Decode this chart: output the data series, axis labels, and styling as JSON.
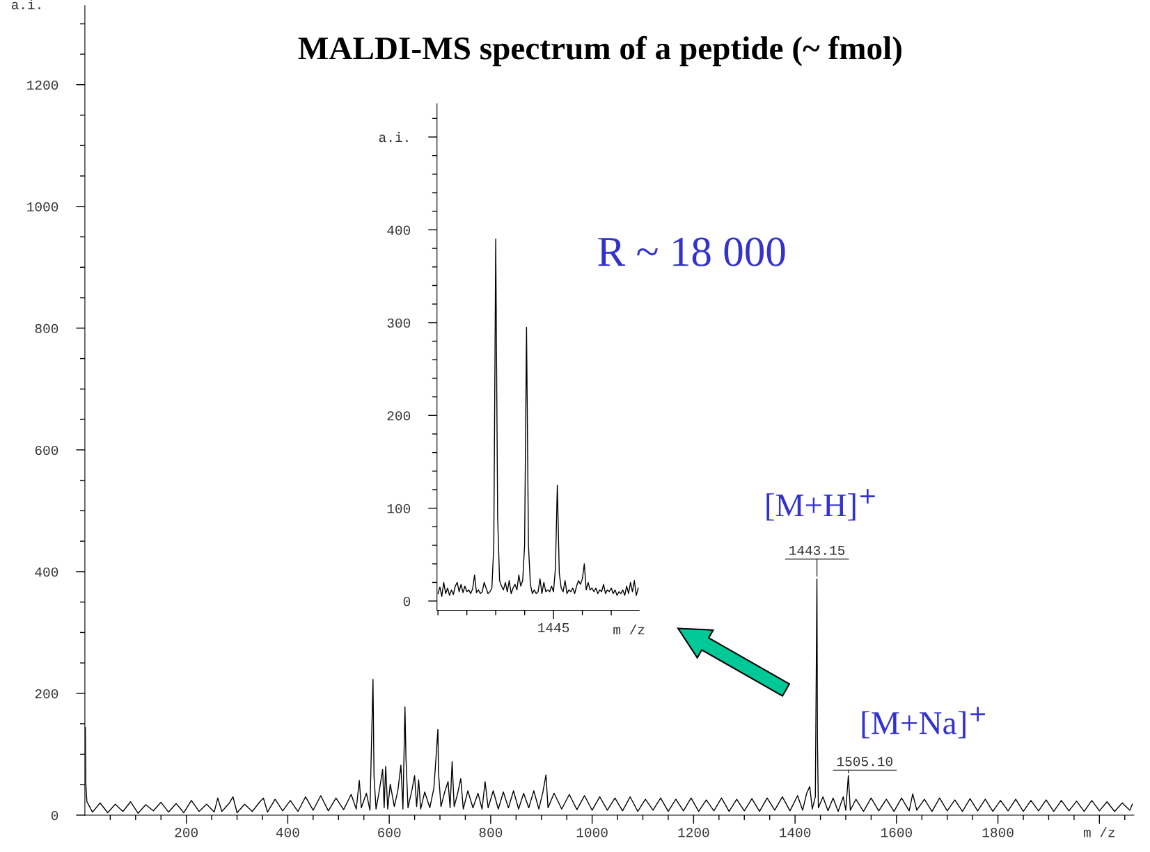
{
  "chart_data": [
    {
      "type": "line",
      "title": "MALDI-MS spectrum of a peptide (~ fmol)",
      "ylabel": "a.i.",
      "xlim": [
        0,
        2068
      ],
      "ylim": [
        0,
        1330
      ],
      "xticks": [
        {
          "value": 50,
          "label": null
        },
        {
          "value": 100,
          "label": null
        },
        {
          "value": 150,
          "label": null
        },
        200,
        {
          "value": 250,
          "label": null
        },
        {
          "value": 300,
          "label": null
        },
        {
          "value": 350,
          "label": null
        },
        400,
        {
          "value": 450,
          "label": null
        },
        {
          "value": 500,
          "label": null
        },
        {
          "value": 550,
          "label": null
        },
        600,
        {
          "value": 650,
          "label": null
        },
        {
          "value": 700,
          "label": null
        },
        {
          "value": 750,
          "label": null
        },
        800,
        {
          "value": 850,
          "label": null
        },
        {
          "value": 900,
          "label": null
        },
        {
          "value": 950,
          "label": null
        },
        1000,
        {
          "value": 1050,
          "label": null
        },
        {
          "value": 1100,
          "label": null
        },
        {
          "value": 1150,
          "label": null
        },
        1200,
        {
          "value": 1250,
          "label": null
        },
        {
          "value": 1300,
          "label": null
        },
        {
          "value": 1350,
          "label": null
        },
        1400,
        {
          "value": 1450,
          "label": null
        },
        {
          "value": 1500,
          "label": null
        },
        {
          "value": 1550,
          "label": null
        },
        1600,
        {
          "value": 1650,
          "label": null
        },
        {
          "value": 1700,
          "label": null
        },
        {
          "value": 1750,
          "label": null
        },
        1800,
        {
          "value": 1850,
          "label": null
        },
        {
          "value": 1900,
          "label": null
        },
        {
          "value": 1950,
          "label": null
        },
        {
          "value": 2000,
          "label": "m /z"
        },
        {
          "value": 2050,
          "label": null
        }
      ],
      "yticks": [
        0,
        {
          "value": 50,
          "label": null
        },
        {
          "value": 100,
          "label": null
        },
        {
          "value": 150,
          "label": null
        },
        200,
        {
          "value": 250,
          "label": null
        },
        {
          "value": 300,
          "label": null
        },
        {
          "value": 350,
          "label": null
        },
        400,
        {
          "value": 450,
          "label": null
        },
        {
          "value": 500,
          "label": null
        },
        {
          "value": 550,
          "label": null
        },
        600,
        {
          "value": 650,
          "label": null
        },
        {
          "value": 700,
          "label": null
        },
        {
          "value": 750,
          "label": null
        },
        800,
        {
          "value": 850,
          "label": null
        },
        {
          "value": 900,
          "label": null
        },
        {
          "value": 950,
          "label": null
        },
        1000,
        {
          "value": 1050,
          "label": null
        },
        {
          "value": 1100,
          "label": null
        },
        {
          "value": 1150,
          "label": null
        },
        1200,
        {
          "value": 1250,
          "label": null
        },
        {
          "value": 1300,
          "label": null
        }
      ],
      "annotations": [
        "[M+H]$^{+}$",
        {
          "text": "1443.15",
          "x": 1443.15,
          "y": 388
        },
        "[M+Na]$^{+}$",
        {
          "text": "1505.10",
          "x": 1505.1,
          "y": 65
        }
      ],
      "series": [
        {
          "color": "#000000",
          "x": [
            1,
            2,
            4,
            15,
            30,
            45,
            60,
            75,
            90,
            105,
            120,
            135,
            150,
            165,
            180,
            195,
            210,
            225,
            240,
            255,
            262,
            270,
            285,
            292,
            300,
            315,
            330,
            345,
            352,
            360,
            375,
            390,
            405,
            420,
            435,
            450,
            465,
            480,
            495,
            510,
            525,
            535,
            541,
            545,
            555,
            562,
            568,
            570,
            574,
            580,
            587,
            590,
            593,
            597,
            602,
            610,
            617,
            623,
            627,
            631,
            633,
            637,
            645,
            650,
            654,
            658,
            662,
            670,
            680,
            688,
            693,
            696,
            697,
            702,
            710,
            716,
            720,
            724,
            728,
            735,
            741,
            746,
            755,
            765,
            775,
            783,
            789,
            795,
            805,
            815,
            825,
            835,
            845,
            855,
            865,
            875,
            885,
            895,
            903,
            909,
            913,
            925,
            940,
            955,
            970,
            985,
            1000,
            1015,
            1030,
            1045,
            1060,
            1075,
            1090,
            1105,
            1120,
            1135,
            1150,
            1165,
            1180,
            1195,
            1210,
            1225,
            1240,
            1255,
            1270,
            1285,
            1300,
            1315,
            1330,
            1345,
            1360,
            1375,
            1390,
            1405,
            1415,
            1423,
            1429,
            1434,
            1440,
            1443.15,
            1444.2,
            1446,
            1455,
            1465,
            1475,
            1485,
            1495,
            1500,
            1505.1,
            1509,
            1520,
            1535,
            1550,
            1565,
            1580,
            1595,
            1610,
            1625,
            1632,
            1640,
            1655,
            1670,
            1685,
            1700,
            1715,
            1730,
            1745,
            1760,
            1775,
            1790,
            1805,
            1820,
            1835,
            1850,
            1865,
            1880,
            1895,
            1910,
            1925,
            1940,
            1955,
            1970,
            1985,
            2000,
            2015,
            2030,
            2045,
            2060,
            2065
          ],
          "values": [
            144,
            50,
            22,
            5,
            20,
            4,
            18,
            6,
            22,
            3,
            17,
            7,
            21,
            5,
            19,
            4,
            24,
            6,
            18,
            5,
            28,
            6,
            20,
            30,
            4,
            18,
            6,
            22,
            28,
            5,
            26,
            7,
            24,
            6,
            30,
            8,
            32,
            7,
            28,
            9,
            34,
            10,
            57,
            12,
            36,
            8,
            223,
            64,
            10,
            38,
            75,
            12,
            80,
            10,
            51,
            14,
            40,
            82,
            10,
            178,
            94,
            12,
            42,
            65,
            14,
            58,
            10,
            38,
            12,
            44,
            104,
            141,
            71,
            14,
            40,
            55,
            12,
            88,
            14,
            36,
            60,
            10,
            40,
            12,
            36,
            10,
            55,
            12,
            40,
            10,
            38,
            12,
            40,
            10,
            36,
            12,
            40,
            10,
            38,
            66,
            12,
            36,
            10,
            34,
            9,
            32,
            8,
            30,
            8,
            28,
            7,
            30,
            6,
            26,
            8,
            28,
            6,
            26,
            7,
            28,
            6,
            25,
            7,
            28,
            6,
            26,
            7,
            27,
            6,
            28,
            8,
            30,
            7,
            32,
            8,
            36,
            47,
            10,
            30,
            388,
            123,
            12,
            30,
            7,
            28,
            6,
            30,
            8,
            65,
            8,
            26,
            6,
            28,
            7,
            26,
            6,
            28,
            7,
            35,
            8,
            26,
            6,
            28,
            7,
            25,
            6,
            27,
            7,
            26,
            6,
            24,
            7,
            26,
            6,
            24,
            7,
            25,
            6,
            24,
            7,
            23,
            6,
            24,
            7,
            22,
            6,
            20,
            8,
            18
          ]
        }
      ]
    },
    {
      "type": "line",
      "annotations": [
        "R ~ 18 000"
      ],
      "xlabel": "m /z",
      "ylim": [
        -10,
        536
      ],
      "categories": [
        null,
        null,
        null,
        null,
        null,
        null,
        null,
        null,
        null,
        null,
        null,
        null,
        null,
        null,
        null,
        null,
        null,
        null,
        null,
        null,
        null,
        null,
        null,
        null,
        null,
        null,
        null,
        null,
        null,
        null,
        null,
        null,
        null,
        null,
        null,
        null,
        null,
        null,
        null,
        null,
        null,
        null,
        null,
        null,
        null,
        null,
        null,
        null,
        null,
        null,
        null,
        null,
        null,
        null,
        null,
        null,
        null,
        null,
        null,
        null,
        "1445",
        null,
        null,
        null,
        null,
        null,
        null,
        null,
        null,
        null,
        null,
        null,
        null,
        null,
        null,
        null,
        null,
        null,
        null,
        null,
        null,
        null,
        null,
        null,
        null,
        null,
        null,
        null,
        null,
        null,
        null,
        null,
        null,
        null,
        null,
        null,
        null,
        null,
        null,
        null,
        null,
        null,
        null,
        null,
        null
      ],
      "yticks": [
        0,
        {
          "value": 20,
          "label": null
        },
        {
          "value": 40,
          "label": null
        },
        {
          "value": 60,
          "label": null
        },
        {
          "value": 80,
          "label": null
        },
        100,
        {
          "value": 120,
          "label": null
        },
        {
          "value": 140,
          "label": null
        },
        {
          "value": 160,
          "label": null
        },
        {
          "value": 180,
          "label": null
        },
        200,
        {
          "value": 220,
          "label": null
        },
        {
          "value": 240,
          "label": null
        },
        {
          "value": 260,
          "label": null
        },
        {
          "value": 280,
          "label": null
        },
        300,
        {
          "value": 320,
          "label": null
        },
        {
          "value": 340,
          "label": null
        },
        {
          "value": 360,
          "label": null
        },
        {
          "value": 380,
          "label": null
        },
        400,
        {
          "value": 420,
          "label": null
        },
        {
          "value": 440,
          "label": null
        },
        {
          "value": 460,
          "label": null
        },
        {
          "value": 480,
          "label": null
        },
        {
          "value": 500,
          "label": "a.i."
        },
        {
          "value": 520,
          "label": null
        }
      ],
      "series": [
        {
          "color": "#000000",
          "values": [
            8,
            15,
            5,
            20,
            8,
            14,
            6,
            12,
            7,
            16,
            20,
            10,
            18,
            9,
            16,
            10,
            12,
            8,
            13,
            28,
            9,
            12,
            8,
            10,
            20,
            14,
            8,
            10,
            14,
            60,
            390,
            90,
            22,
            16,
            12,
            20,
            10,
            22,
            8,
            14,
            18,
            12,
            28,
            16,
            22,
            60,
            295,
            60,
            18,
            8,
            12,
            8,
            10,
            24,
            8,
            20,
            10,
            12,
            10,
            16,
            10,
            35,
            125,
            30,
            14,
            10,
            22,
            8,
            12,
            10,
            14,
            8,
            16,
            22,
            18,
            24,
            40,
            12,
            20,
            12,
            14,
            10,
            14,
            8,
            12,
            10,
            18,
            8,
            12,
            10,
            14,
            8,
            12,
            6,
            10,
            8,
            12,
            6,
            16,
            8,
            20,
            10,
            22,
            6,
            14
          ]
        }
      ]
    }
  ]
}
